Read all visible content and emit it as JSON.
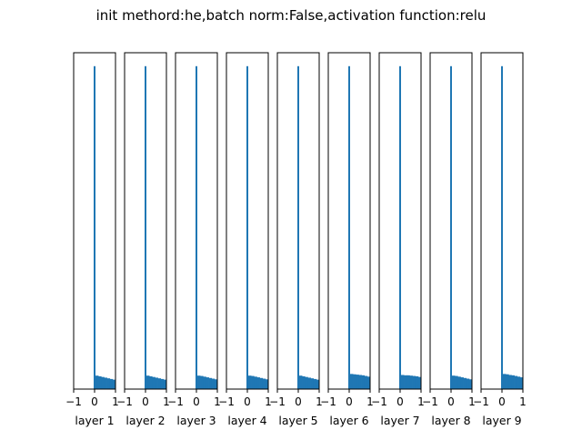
{
  "chart_data": {
    "type": "bar",
    "title": "init methord:he,batch norm:False,activation function:relu",
    "bar_color": "#1f77b4",
    "xlim": [
      -1,
      1
    ],
    "x_ticks": [
      -1,
      0,
      1
    ],
    "x_tick_labels": [
      "−1",
      "0",
      "1"
    ],
    "grid": false,
    "yticks_visible": false,
    "panels": [
      {
        "label": "layer 1",
        "spike_height": 0.96,
        "tail": [
          0.04,
          0.038,
          0.036,
          0.034,
          0.032,
          0.03,
          0.028
        ]
      },
      {
        "label": "layer 2",
        "spike_height": 0.96,
        "tail": [
          0.04,
          0.038,
          0.036,
          0.034,
          0.032,
          0.03,
          0.028
        ]
      },
      {
        "label": "layer 3",
        "spike_height": 0.96,
        "tail": [
          0.04,
          0.039,
          0.037,
          0.035,
          0.033,
          0.031,
          0.029
        ]
      },
      {
        "label": "layer 4",
        "spike_height": 0.96,
        "tail": [
          0.04,
          0.039,
          0.037,
          0.035,
          0.033,
          0.031,
          0.029
        ]
      },
      {
        "label": "layer 5",
        "spike_height": 0.96,
        "tail": [
          0.04,
          0.038,
          0.036,
          0.034,
          0.032,
          0.03,
          0.028
        ]
      },
      {
        "label": "layer 6",
        "spike_height": 0.96,
        "tail": [
          0.045,
          0.044,
          0.043,
          0.042,
          0.041,
          0.039,
          0.037
        ]
      },
      {
        "label": "layer 7",
        "spike_height": 0.96,
        "tail": [
          0.042,
          0.041,
          0.041,
          0.04,
          0.039,
          0.038,
          0.036
        ]
      },
      {
        "label": "layer 8",
        "spike_height": 0.96,
        "tail": [
          0.04,
          0.039,
          0.037,
          0.035,
          0.033,
          0.031,
          0.029
        ]
      },
      {
        "label": "layer 9",
        "spike_height": 0.96,
        "tail": [
          0.045,
          0.044,
          0.042,
          0.041,
          0.039,
          0.037,
          0.035
        ]
      }
    ]
  }
}
